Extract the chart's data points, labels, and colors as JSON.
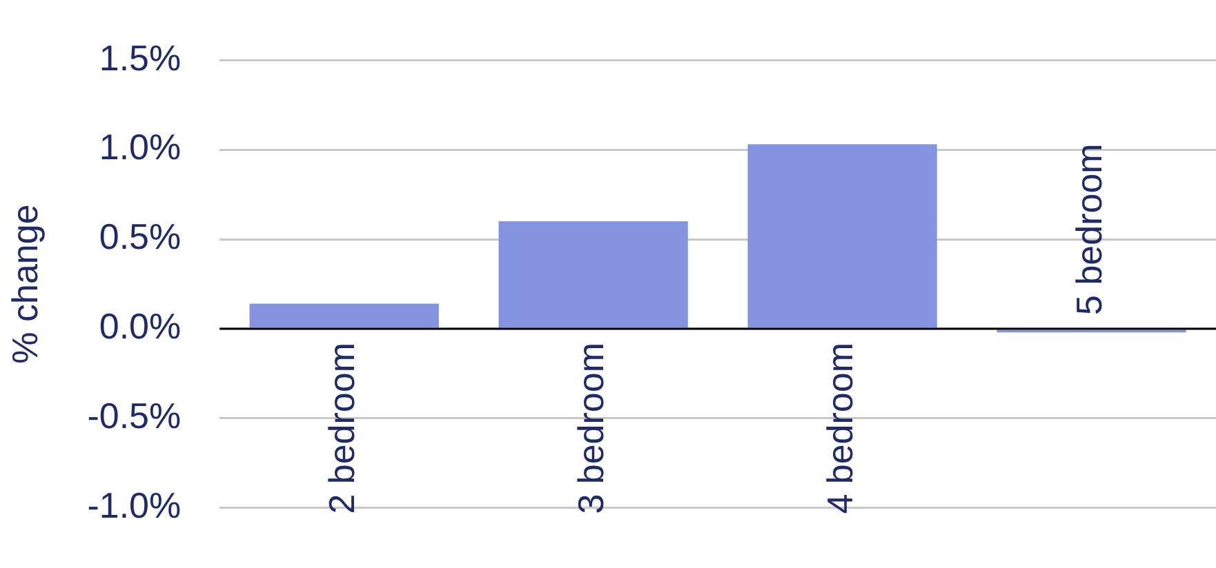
{
  "chart_data": {
    "type": "bar",
    "ylabel": "% change",
    "categories": [
      "2 bedroom",
      "3 bedroom",
      "4 bedroom",
      "5 bedroom"
    ],
    "series": [
      {
        "color": "#8494e0",
        "values": [
          0.14,
          0.6,
          1.03,
          -0.02
        ]
      }
    ],
    "ylim": [
      -1.0,
      1.5
    ],
    "yticks": [
      {
        "value": -1.0,
        "label": "-1.0%"
      },
      {
        "value": -0.5,
        "label": "-0.5%"
      },
      {
        "value": 0,
        "label": "0.0%"
      },
      {
        "value": 0.5,
        "label": "0.5%"
      },
      {
        "value": 1.0,
        "label": "1.0%"
      },
      {
        "value": 1.5,
        "label": "1.5%"
      }
    ],
    "grid": "y",
    "legend": false
  }
}
